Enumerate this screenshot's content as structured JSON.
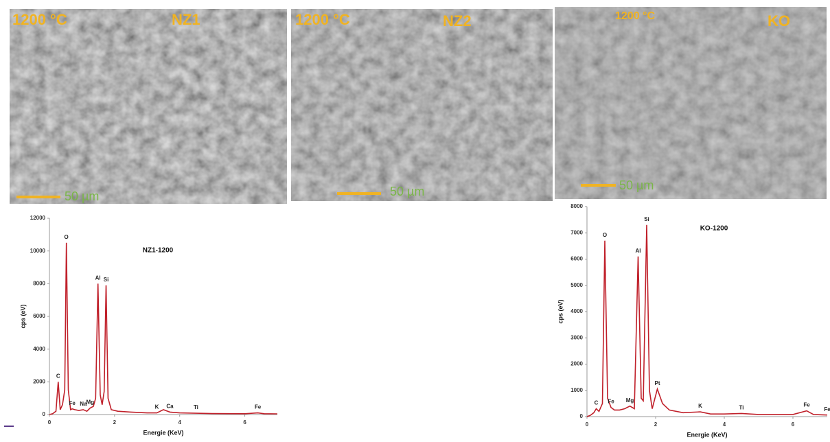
{
  "panels": [
    {
      "temperature": "1200 °C",
      "sample": "NZ1",
      "scale": "50 µm"
    },
    {
      "temperature": "1200 °C",
      "sample": "NZ2",
      "scale": "50 µm"
    },
    {
      "temperature": "1200 °C",
      "sample": "KO",
      "scale": "50 µm"
    }
  ],
  "chart_data": [
    {
      "type": "line",
      "title": "NZ1-1200",
      "x_label": "Energie (KeV)",
      "y_label": "cps (eV)",
      "xlim": [
        0,
        7
      ],
      "xticks": [
        0,
        2,
        4,
        6
      ],
      "ylim": [
        0,
        12000
      ],
      "yticks": [
        0,
        2000,
        4000,
        6000,
        8000,
        10000,
        12000
      ],
      "series": [
        {
          "name": "NZ1-1200",
          "color": "#c0202a",
          "x": [
            0,
            0.1,
            0.2,
            0.27,
            0.33,
            0.4,
            0.47,
            0.52,
            0.58,
            0.65,
            0.7,
            0.78,
            0.9,
            1.04,
            1.15,
            1.25,
            1.35,
            1.42,
            1.49,
            1.56,
            1.62,
            1.68,
            1.74,
            1.8,
            1.9,
            2.1,
            2.5,
            3.0,
            3.3,
            3.5,
            3.7,
            4.0,
            4.5,
            5,
            6,
            6.4,
            6.6,
            7
          ],
          "values": [
            0,
            50,
            200,
            2000,
            300,
            600,
            1500,
            10500,
            1500,
            300,
            350,
            300,
            250,
            300,
            200,
            400,
            500,
            1000,
            8000,
            1200,
            600,
            1400,
            7900,
            1000,
            300,
            200,
            150,
            100,
            100,
            300,
            150,
            100,
            80,
            60,
            50,
            100,
            50,
            40
          ]
        }
      ],
      "annotations": [
        {
          "text": "C",
          "x": 0.27
        },
        {
          "text": "O",
          "x": 0.52
        },
        {
          "text": "Fe",
          "x": 0.7
        },
        {
          "text": "Na",
          "x": 1.04
        },
        {
          "text": "Mg",
          "x": 1.25
        },
        {
          "text": "Al",
          "x": 1.49
        },
        {
          "text": "Si",
          "x": 1.74
        },
        {
          "text": "K",
          "x": 3.3
        },
        {
          "text": "Ca",
          "x": 3.7
        },
        {
          "text": "Ti",
          "x": 4.5
        },
        {
          "text": "Fe",
          "x": 6.4
        }
      ]
    },
    {
      "type": "line",
      "title": "KO-1200",
      "x_label": "Energie (KeV)",
      "y_label": "cps (eV)",
      "xlim": [
        0,
        7
      ],
      "xticks": [
        0,
        2,
        4,
        6
      ],
      "ylim": [
        0,
        8000
      ],
      "yticks": [
        0,
        1000,
        2000,
        3000,
        4000,
        5000,
        6000,
        7000,
        8000
      ],
      "series": [
        {
          "name": "KO-1200",
          "color": "#c0202a",
          "x": [
            0,
            0.1,
            0.2,
            0.27,
            0.35,
            0.45,
            0.52,
            0.6,
            0.7,
            0.8,
            0.95,
            1.1,
            1.25,
            1.38,
            1.49,
            1.58,
            1.64,
            1.74,
            1.82,
            1.9,
            2.05,
            2.2,
            2.4,
            2.8,
            3.3,
            3.6,
            4.0,
            4.5,
            5,
            6,
            6.4,
            6.6,
            7
          ],
          "values": [
            0,
            50,
            150,
            300,
            200,
            500,
            6700,
            700,
            350,
            250,
            250,
            300,
            400,
            300,
            6100,
            700,
            600,
            7300,
            1000,
            300,
            1050,
            500,
            250,
            150,
            180,
            100,
            100,
            120,
            80,
            80,
            220,
            80,
            60
          ]
        }
      ],
      "annotations": [
        {
          "text": "C",
          "x": 0.27
        },
        {
          "text": "O",
          "x": 0.52
        },
        {
          "text": "Fe",
          "x": 0.7
        },
        {
          "text": "Mg",
          "x": 1.25
        },
        {
          "text": "Al",
          "x": 1.49
        },
        {
          "text": "Si",
          "x": 1.74
        },
        {
          "text": "Pt",
          "x": 2.05
        },
        {
          "text": "K",
          "x": 3.3
        },
        {
          "text": "Ti",
          "x": 4.5
        },
        {
          "text": "Fe",
          "x": 6.4
        },
        {
          "text": "Fe",
          "x": 7
        }
      ]
    }
  ]
}
